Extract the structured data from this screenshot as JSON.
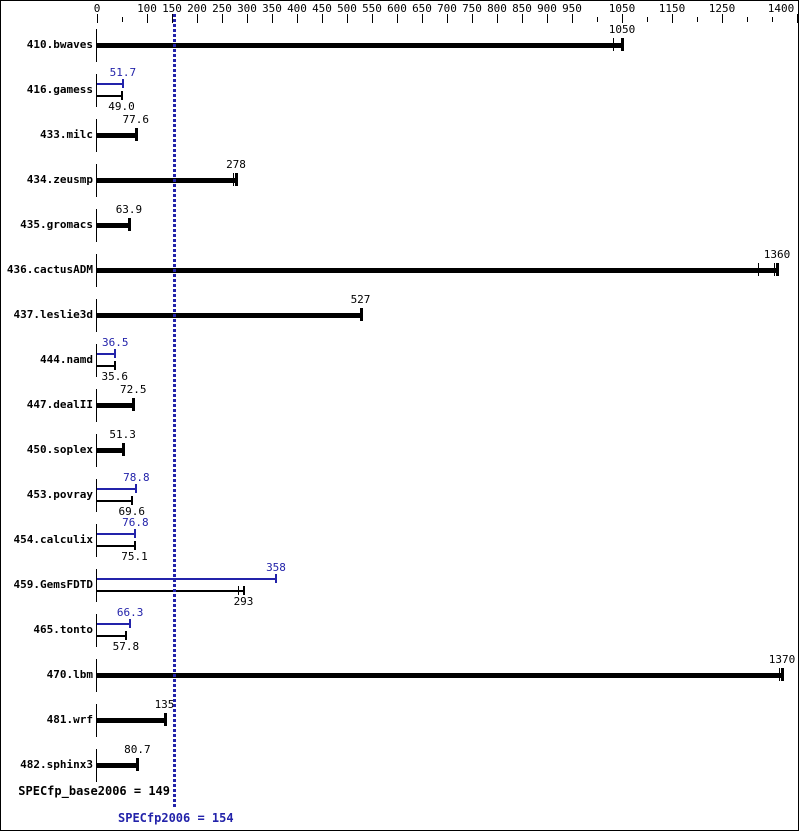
{
  "colors": {
    "base": "#000000",
    "peak": "#2323aa",
    "background": "#ffffff",
    "border": "#000000"
  },
  "chart_data": {
    "type": "bar",
    "orientation": "horizontal",
    "title": "",
    "xlabel": "",
    "ylabel": "",
    "xlim": [
      0,
      1400
    ],
    "grid": false,
    "x_major_ticks": [
      0,
      100,
      150,
      200,
      250,
      300,
      350,
      400,
      450,
      500,
      550,
      600,
      650,
      700,
      750,
      800,
      850,
      900,
      950,
      1050,
      1150,
      1250,
      1400
    ],
    "x_minor_ticks": [
      50,
      1000,
      1100,
      1200,
      1300,
      1350
    ],
    "series": [
      {
        "name": "base",
        "color": "#000000"
      },
      {
        "name": "peak",
        "color": "#2323aa"
      }
    ],
    "rows": [
      {
        "name": "410.bwaves",
        "base": 1050,
        "base_label": "1050",
        "peak": null,
        "peak_label": null,
        "run_ticks": [
          1032
        ]
      },
      {
        "name": "416.gamess",
        "base": 49.0,
        "base_label": "49.0",
        "peak": 51.7,
        "peak_label": "51.7",
        "run_ticks": []
      },
      {
        "name": "433.milc",
        "base": 77.6,
        "base_label": "77.6",
        "peak": null,
        "peak_label": null,
        "run_ticks": []
      },
      {
        "name": "434.zeusmp",
        "base": 278,
        "base_label": "278",
        "peak": null,
        "peak_label": null,
        "run_ticks": [
          272
        ]
      },
      {
        "name": "435.gromacs",
        "base": 63.9,
        "base_label": "63.9",
        "peak": null,
        "peak_label": null,
        "run_ticks": []
      },
      {
        "name": "436.cactusADM",
        "base": 1360,
        "base_label": "1360",
        "peak": null,
        "peak_label": null,
        "run_ticks": [
          1322,
          1354
        ]
      },
      {
        "name": "437.leslie3d",
        "base": 527,
        "base_label": "527",
        "peak": null,
        "peak_label": null,
        "run_ticks": []
      },
      {
        "name": "444.namd",
        "base": 35.6,
        "base_label": "35.6",
        "peak": 36.5,
        "peak_label": "36.5",
        "run_ticks": []
      },
      {
        "name": "447.dealII",
        "base": 72.5,
        "base_label": "72.5",
        "peak": null,
        "peak_label": null,
        "run_ticks": []
      },
      {
        "name": "450.soplex",
        "base": 51.3,
        "base_label": "51.3",
        "peak": null,
        "peak_label": null,
        "run_ticks": []
      },
      {
        "name": "453.povray",
        "base": 69.6,
        "base_label": "69.6",
        "peak": 78.8,
        "peak_label": "78.8",
        "run_ticks": []
      },
      {
        "name": "454.calculix",
        "base": 75.1,
        "base_label": "75.1",
        "peak": 76.8,
        "peak_label": "76.8",
        "run_ticks": []
      },
      {
        "name": "459.GemsFDTD",
        "base": 293,
        "base_label": "293",
        "peak": 358,
        "peak_label": "358",
        "run_ticks": [
          282
        ]
      },
      {
        "name": "465.tonto",
        "base": 57.8,
        "base_label": "57.8",
        "peak": 66.3,
        "peak_label": "66.3",
        "run_ticks": []
      },
      {
        "name": "470.lbm",
        "base": 1370,
        "base_label": "1370",
        "peak": null,
        "peak_label": null,
        "run_ticks": [
          1364
        ]
      },
      {
        "name": "481.wrf",
        "base": 135,
        "base_label": "135",
        "peak": null,
        "peak_label": null,
        "run_ticks": []
      },
      {
        "name": "482.sphinx3",
        "base": 80.7,
        "base_label": "80.7",
        "peak": null,
        "peak_label": null,
        "run_ticks": []
      }
    ],
    "reference_line": {
      "value": 154,
      "style": "dotted",
      "color": "#2323aa"
    },
    "summary": {
      "base_text": "SPECfp_base2006 = 149",
      "peak_text": "SPECfp2006 = 154",
      "base_value": 149,
      "peak_value": 154
    }
  }
}
